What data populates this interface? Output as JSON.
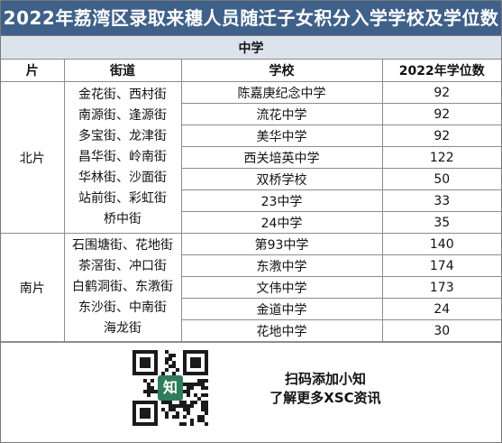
{
  "title": "2022年荔湾区录取来穗人员随迁子女积分入学学校及学位数",
  "section": "中学",
  "columns": [
    "片",
    "街道",
    "学校",
    "2022年学位数"
  ],
  "regions": [
    {
      "name": "北片",
      "streets": [
        "金花街、西村街",
        "南源街、逢源街",
        "多宝街、龙津街",
        "昌华街、岭南街",
        "华林街、沙面街",
        "站前街、彩虹街",
        "桥中街"
      ],
      "schools": [
        {
          "name": "陈嘉庚纪念中学",
          "seats": "92"
        },
        {
          "name": "流花中学",
          "seats": "92"
        },
        {
          "name": "美华中学",
          "seats": "92"
        },
        {
          "name": "西关培英中学",
          "seats": "122"
        },
        {
          "name": "双桥学校",
          "seats": "50"
        },
        {
          "name": "23中学",
          "seats": "33"
        },
        {
          "name": "24中学",
          "seats": "35"
        }
      ]
    },
    {
      "name": "南片",
      "streets": [
        "石围塘街、花地街",
        "茶滘街、冲口街",
        "白鹤洞街、东漖街",
        "东沙街、中南街",
        "海龙街"
      ],
      "schools": [
        {
          "name": "第93中学",
          "seats": "140"
        },
        {
          "name": "东漖中学",
          "seats": "174"
        },
        {
          "name": "文伟中学",
          "seats": "173"
        },
        {
          "name": "金道中学",
          "seats": "24"
        },
        {
          "name": "花地中学",
          "seats": "30"
        }
      ]
    }
  ],
  "footer": {
    "qr_icon": "知",
    "line1": "扫码添加小知",
    "line2": "了解更多XSC资讯"
  },
  "colors": {
    "title_bg": "#3f6089",
    "section_bg": "#dde3ec",
    "qr_accent": "#2f7d5a"
  }
}
